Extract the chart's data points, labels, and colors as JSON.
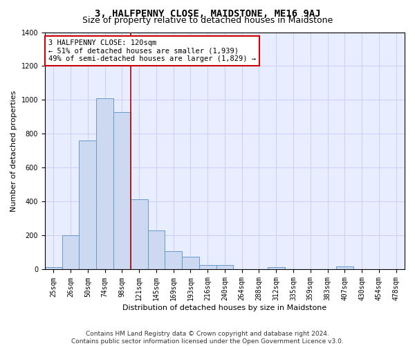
{
  "title": "3, HALFPENNY CLOSE, MAIDSTONE, ME16 9AJ",
  "subtitle": "Size of property relative to detached houses in Maidstone",
  "xlabel": "Distribution of detached houses by size in Maidstone",
  "ylabel": "Number of detached properties",
  "footnote1": "Contains HM Land Registry data © Crown copyright and database right 2024.",
  "footnote2": "Contains public sector information licensed under the Open Government Licence v3.0.",
  "annotation_line1": "3 HALFPENNY CLOSE: 120sqm",
  "annotation_line2": "← 51% of detached houses are smaller (1,939)",
  "annotation_line3": "49% of semi-detached houses are larger (1,829) →",
  "bar_color": "#ccd9f0",
  "bar_edge_color": "#6699cc",
  "grid_color": "#ccccff",
  "marker_line_color": "#aa0000",
  "annotation_box_edge_color": "#cc0000",
  "background_color": "#e8eeff",
  "categories": [
    "25sqm",
    "26sqm",
    "50sqm",
    "74sqm",
    "98sqm",
    "121sqm",
    "145sqm",
    "169sqm",
    "193sqm",
    "216sqm",
    "240sqm",
    "264sqm",
    "288sqm",
    "312sqm",
    "335sqm",
    "359sqm",
    "383sqm",
    "407sqm",
    "430sqm",
    "454sqm",
    "478sqm"
  ],
  "values": [
    15,
    200,
    760,
    1010,
    930,
    415,
    230,
    110,
    75,
    25,
    25,
    0,
    0,
    15,
    0,
    0,
    0,
    20,
    0,
    0,
    0
  ],
  "ylim": [
    0,
    1400
  ],
  "yticks": [
    0,
    200,
    400,
    600,
    800,
    1000,
    1200,
    1400
  ],
  "title_fontsize": 10,
  "subtitle_fontsize": 9,
  "axis_label_fontsize": 8,
  "tick_fontsize": 7,
  "annotation_fontsize": 7.5,
  "footnote_fontsize": 6.5
}
